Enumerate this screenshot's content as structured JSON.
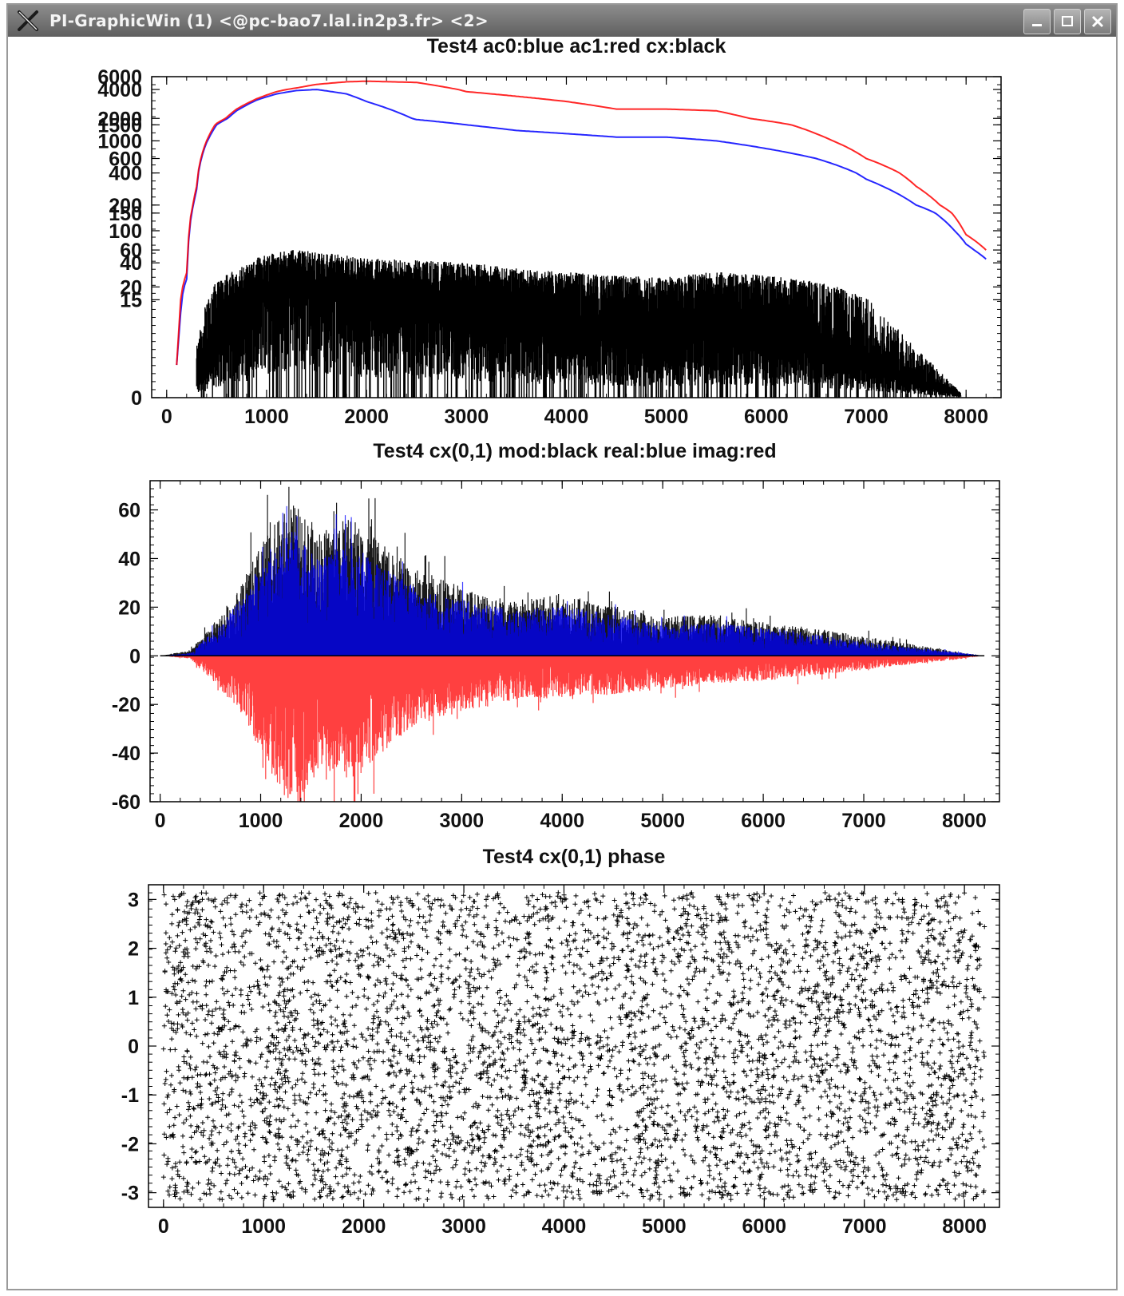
{
  "window": {
    "title": "PI-GraphicWin (1) <@pc-bao7.lal.in2p3.fr> <2>",
    "icons": [
      "x-app-icon",
      "minimize-icon",
      "maximize-icon",
      "close-icon"
    ]
  },
  "chart_data": [
    {
      "type": "line",
      "title": "Test4 ac0:blue ac1:red cx:black",
      "xlabel": "",
      "ylabel": "",
      "xlim": [
        -150,
        8350
      ],
      "ylim": [
        0,
        6000
      ],
      "y_scale": "compressed (log-like)",
      "x_ticks": [
        0,
        1000,
        2000,
        3000,
        4000,
        5000,
        6000,
        7000,
        8000
      ],
      "y_ticks": [
        0,
        15,
        20,
        40,
        60,
        100,
        150,
        200,
        400,
        600,
        1000,
        1500,
        2000,
        4000,
        6000
      ],
      "series": [
        {
          "color": "#ff0000",
          "x": [
            100,
            200,
            300,
            400,
            500,
            700,
            900,
            1100,
            1300,
            1500,
            1800,
            2000,
            2500,
            3000,
            3500,
            4000,
            4500,
            5000,
            5500,
            6000,
            6500,
            7000,
            7500,
            8000,
            8200
          ],
          "y": [
            5,
            30,
            300,
            1000,
            1600,
            2500,
            3200,
            3800,
            4200,
            4700,
            5100,
            5200,
            5000,
            3800,
            3400,
            3000,
            2500,
            2500,
            2400,
            1800,
            1200,
            600,
            300,
            90,
            60
          ]
        },
        {
          "color": "#0000ff",
          "x": [
            100,
            200,
            300,
            400,
            500,
            700,
            900,
            1100,
            1300,
            1500,
            1800,
            2000,
            2500,
            3000,
            3500,
            4000,
            4500,
            5000,
            5500,
            6000,
            6500,
            7000,
            7500,
            8000,
            8200
          ],
          "y": [
            5,
            25,
            280,
            950,
            1500,
            2400,
            3100,
            3600,
            3900,
            4000,
            3600,
            3000,
            1900,
            1500,
            1300,
            1200,
            1100,
            1100,
            1000,
            800,
            600,
            350,
            200,
            70,
            45
          ]
        },
        {
          "color": "#000000",
          "style": "noisy band",
          "x": [
            300,
            500,
            800,
            1000,
            1300,
            1600,
            2000,
            2500,
            3000,
            3500,
            4000,
            4500,
            5000,
            5500,
            6000,
            6500,
            7000,
            7500,
            8000
          ],
          "y": [
            5,
            15,
            25,
            35,
            40,
            35,
            30,
            28,
            26,
            22,
            20,
            18,
            17,
            20,
            18,
            15,
            10,
            5,
            0
          ]
        }
      ]
    },
    {
      "type": "line",
      "title": "Test4 cx(0,1) mod:black real:blue imag:red",
      "xlabel": "",
      "ylabel": "",
      "xlim": [
        -100,
        8350
      ],
      "ylim": [
        -60,
        72
      ],
      "x_ticks": [
        0,
        1000,
        2000,
        3000,
        4000,
        5000,
        6000,
        7000,
        8000
      ],
      "y_ticks": [
        -60,
        -40,
        -20,
        0,
        20,
        40,
        60
      ],
      "series": [
        {
          "color": "#000000",
          "x": [
            0,
            300,
            500,
            800,
            1000,
            1300,
            1600,
            1900,
            2200,
            2600,
            3000,
            3500,
            4000,
            4500,
            5000,
            5500,
            6000,
            6500,
            7000,
            7500,
            8000,
            8200
          ],
          "y": [
            0,
            2,
            10,
            25,
            40,
            55,
            45,
            50,
            40,
            30,
            25,
            20,
            22,
            18,
            14,
            15,
            12,
            10,
            7,
            4,
            1,
            0
          ]
        },
        {
          "color": "#0000ff",
          "x": [
            0,
            300,
            500,
            800,
            1000,
            1300,
            1600,
            1900,
            2200,
            2600,
            3000,
            3500,
            4000,
            4500,
            5000,
            5500,
            6000,
            6500,
            7000,
            7500,
            8000,
            8200
          ],
          "y": [
            0,
            1,
            8,
            20,
            30,
            45,
            35,
            40,
            32,
            24,
            20,
            16,
            18,
            15,
            11,
            12,
            10,
            8,
            5,
            3,
            1,
            0
          ]
        },
        {
          "color": "#ff0000",
          "x": [
            0,
            300,
            500,
            800,
            1000,
            1300,
            1600,
            1900,
            2200,
            2600,
            3000,
            3500,
            4000,
            4500,
            5000,
            5500,
            6000,
            6500,
            7000,
            7500,
            8000,
            8200
          ],
          "y": [
            0,
            -1,
            -8,
            -20,
            -35,
            -55,
            -40,
            -45,
            -35,
            -25,
            -20,
            -16,
            -15,
            -14,
            -12,
            -10,
            -9,
            -7,
            -5,
            -3,
            -1,
            0
          ]
        }
      ]
    },
    {
      "type": "scatter",
      "title": "Test4 cx(0,1) phase",
      "xlabel": "",
      "ylabel": "",
      "xlim": [
        -150,
        8350
      ],
      "ylim": [
        -3.3,
        3.3
      ],
      "x_ticks": [
        0,
        1000,
        2000,
        3000,
        4000,
        5000,
        6000,
        7000,
        8000
      ],
      "y_ticks": [
        -3,
        -2,
        -1,
        0,
        1,
        2,
        3
      ],
      "series": [
        {
          "color": "#000000",
          "marker": "+",
          "distribution": "uniform over [-3.14, 3.14] for x in [0, 8200]",
          "x_range": [
            0,
            8200
          ],
          "y_range": [
            -3.14,
            3.14
          ]
        }
      ]
    }
  ]
}
